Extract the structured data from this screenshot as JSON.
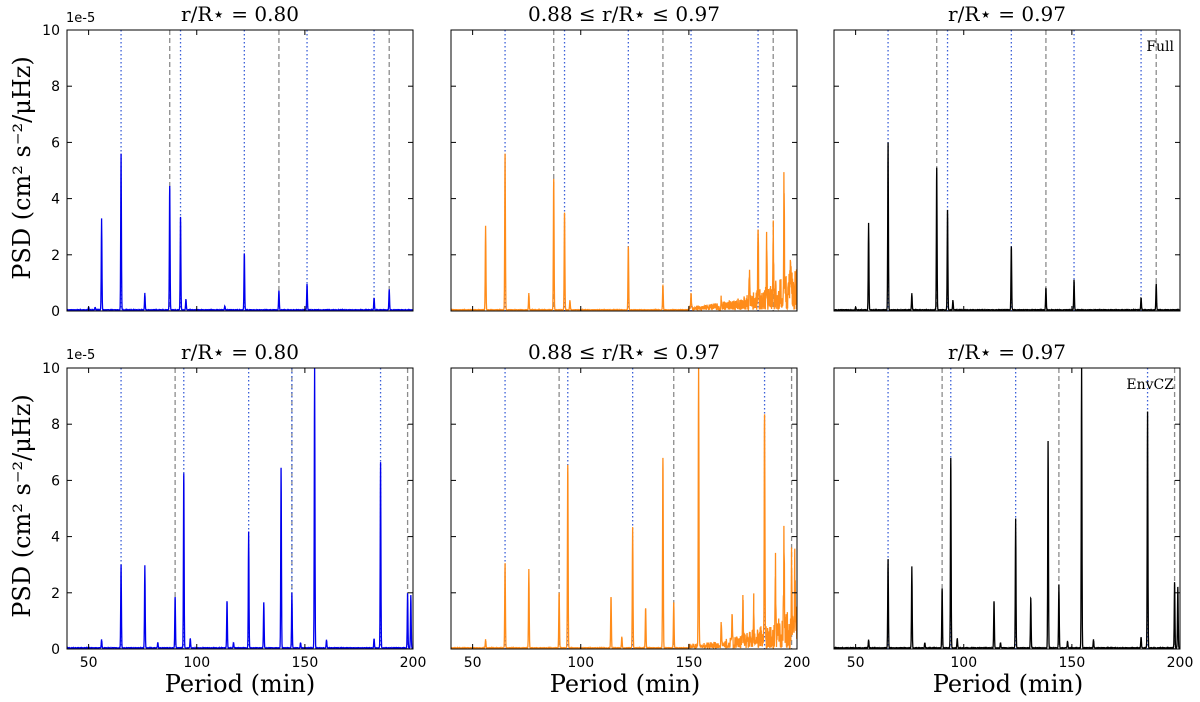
{
  "figure": {
    "ylabel": "PSD (cm² s⁻²/μHz)",
    "xlabel": "Period (min)",
    "y_offset_text": "1e-5"
  },
  "chart_data": [
    {
      "type": "line",
      "row": 0,
      "col": 0,
      "title": "r/R⋆ = 0.80",
      "color": "#0000ee",
      "annotation": "",
      "xlim": [
        40,
        200
      ],
      "ylim": [
        0,
        10
      ],
      "xticks": [
        50,
        100,
        150,
        200
      ],
      "yticks": [
        0,
        2,
        4,
        6,
        8,
        10
      ],
      "vlines_dotted": [
        65,
        92.5,
        122,
        151,
        182
      ],
      "vlines_dashed": [
        87.5,
        138,
        189
      ],
      "peaks": [
        [
          50,
          0.1
        ],
        [
          53,
          0.1
        ],
        [
          56,
          3.25
        ],
        [
          65,
          5.6
        ],
        [
          76,
          0.6
        ],
        [
          87.5,
          4.45
        ],
        [
          92.5,
          3.35
        ],
        [
          95,
          0.4
        ],
        [
          113,
          0.15
        ],
        [
          122,
          2.05
        ],
        [
          138,
          0.7
        ],
        [
          151,
          0.95
        ],
        [
          182,
          0.45
        ],
        [
          189,
          0.75
        ]
      ],
      "noise": false
    },
    {
      "type": "line",
      "row": 0,
      "col": 1,
      "title": "0.88 ≤ r/R⋆ ≤ 0.97",
      "color": "#ff8c1a",
      "annotation": "",
      "xlim": [
        40,
        200
      ],
      "ylim": [
        0,
        10
      ],
      "xticks": [
        50,
        100,
        150,
        200
      ],
      "yticks": [
        0,
        2,
        4,
        6,
        8,
        10
      ],
      "vlines_dotted": [
        65,
        92.5,
        122,
        151,
        182
      ],
      "vlines_dashed": [
        87.5,
        138,
        189
      ],
      "peaks": [
        [
          56,
          3.0
        ],
        [
          65,
          5.6
        ],
        [
          76,
          0.6
        ],
        [
          87.5,
          4.7
        ],
        [
          92.5,
          3.5
        ],
        [
          95,
          0.35
        ],
        [
          122,
          2.3
        ],
        [
          138,
          0.9
        ],
        [
          151,
          0.6
        ],
        [
          165,
          0.3
        ],
        [
          178,
          1.2
        ],
        [
          182,
          2.9
        ],
        [
          186,
          2.2
        ],
        [
          189,
          2.6
        ],
        [
          194,
          4.0
        ],
        [
          197,
          1.5
        ]
      ],
      "noise": true
    },
    {
      "type": "line",
      "row": 0,
      "col": 2,
      "title": "r/R⋆ = 0.97",
      "color": "#000000",
      "annotation": "Full",
      "xlim": [
        40,
        200
      ],
      "ylim": [
        0,
        10
      ],
      "xticks": [
        50,
        100,
        150,
        200
      ],
      "yticks": [
        0,
        2,
        4,
        6,
        8,
        10
      ],
      "vlines_dotted": [
        65,
        92.5,
        122,
        151,
        182
      ],
      "vlines_dashed": [
        87.5,
        138,
        189
      ],
      "peaks": [
        [
          50,
          0.1
        ],
        [
          56,
          3.1
        ],
        [
          65,
          6.0
        ],
        [
          76,
          0.6
        ],
        [
          87.5,
          5.1
        ],
        [
          92.5,
          3.6
        ],
        [
          95,
          0.35
        ],
        [
          122,
          2.3
        ],
        [
          138,
          0.8
        ],
        [
          151,
          1.1
        ],
        [
          182,
          0.45
        ],
        [
          189,
          0.95
        ]
      ],
      "noise": false
    },
    {
      "type": "line",
      "row": 1,
      "col": 0,
      "title": "r/R⋆ = 0.80",
      "color": "#0000ee",
      "annotation": "",
      "xlim": [
        40,
        200
      ],
      "ylim": [
        0,
        10
      ],
      "xticks": [
        50,
        100,
        150,
        200
      ],
      "yticks": [
        0,
        2,
        4,
        6,
        8,
        10
      ],
      "vlines_dotted": [
        65,
        94,
        124,
        144,
        185
      ],
      "vlines_dashed": [
        90,
        144,
        197.5
      ],
      "peaks": [
        [
          56,
          0.3
        ],
        [
          65,
          3.0
        ],
        [
          76,
          2.95
        ],
        [
          82,
          0.2
        ],
        [
          90,
          1.85
        ],
        [
          94,
          6.25
        ],
        [
          97,
          0.35
        ],
        [
          114,
          1.7
        ],
        [
          117,
          0.2
        ],
        [
          124,
          4.15
        ],
        [
          131,
          1.65
        ],
        [
          139,
          6.45
        ],
        [
          144,
          1.95
        ],
        [
          148,
          0.2
        ],
        [
          154.5,
          10.0
        ],
        [
          160,
          0.3
        ],
        [
          182,
          0.35
        ],
        [
          185,
          6.65
        ],
        [
          197.5,
          1.95
        ],
        [
          199,
          1.9
        ]
      ],
      "noise": false
    },
    {
      "type": "line",
      "row": 1,
      "col": 1,
      "title": "0.88 ≤ r/R⋆ ≤ 0.97",
      "color": "#ff8c1a",
      "annotation": "",
      "xlim": [
        40,
        200
      ],
      "ylim": [
        0,
        10
      ],
      "xticks": [
        50,
        100,
        150,
        200
      ],
      "yticks": [
        0,
        2,
        4,
        6,
        8,
        10
      ],
      "vlines_dotted": [
        65,
        94,
        124,
        185
      ],
      "vlines_dashed": [
        90,
        143,
        197.5
      ],
      "peaks": [
        [
          56,
          0.3
        ],
        [
          65,
          3.05
        ],
        [
          76,
          2.8
        ],
        [
          90,
          2.0
        ],
        [
          94,
          6.55
        ],
        [
          114,
          1.85
        ],
        [
          119,
          0.4
        ],
        [
          124,
          4.3
        ],
        [
          130,
          1.45
        ],
        [
          138,
          6.8
        ],
        [
          143,
          1.65
        ],
        [
          154.5,
          10.0
        ],
        [
          165,
          0.8
        ],
        [
          170,
          1.2
        ],
        [
          175,
          1.6
        ],
        [
          180,
          1.3
        ],
        [
          185,
          8.35
        ],
        [
          190,
          2.6
        ],
        [
          194,
          3.45
        ],
        [
          197.5,
          3.0
        ],
        [
          199,
          2.5
        ]
      ],
      "noise": true
    },
    {
      "type": "line",
      "row": 1,
      "col": 2,
      "title": "r/R⋆ = 0.97",
      "color": "#000000",
      "annotation": "EnvCZ",
      "xlim": [
        40,
        200
      ],
      "ylim": [
        0,
        10
      ],
      "xticks": [
        50,
        100,
        150,
        200
      ],
      "yticks": [
        0,
        2,
        4,
        6,
        8,
        10
      ],
      "vlines_dotted": [
        65,
        94,
        124,
        185
      ],
      "vlines_dashed": [
        90,
        144,
        197.5
      ],
      "peaks": [
        [
          56,
          0.3
        ],
        [
          65,
          3.2
        ],
        [
          76,
          2.9
        ],
        [
          82,
          0.2
        ],
        [
          90,
          2.15
        ],
        [
          94,
          6.8
        ],
        [
          97,
          0.35
        ],
        [
          114,
          1.7
        ],
        [
          117,
          0.2
        ],
        [
          124,
          4.6
        ],
        [
          131,
          1.8
        ],
        [
          139,
          7.4
        ],
        [
          144,
          2.25
        ],
        [
          148,
          0.25
        ],
        [
          154.5,
          10.0
        ],
        [
          160,
          0.3
        ],
        [
          182,
          0.4
        ],
        [
          185,
          8.45
        ],
        [
          197.5,
          2.35
        ],
        [
          199,
          2.2
        ]
      ],
      "noise": false
    }
  ]
}
